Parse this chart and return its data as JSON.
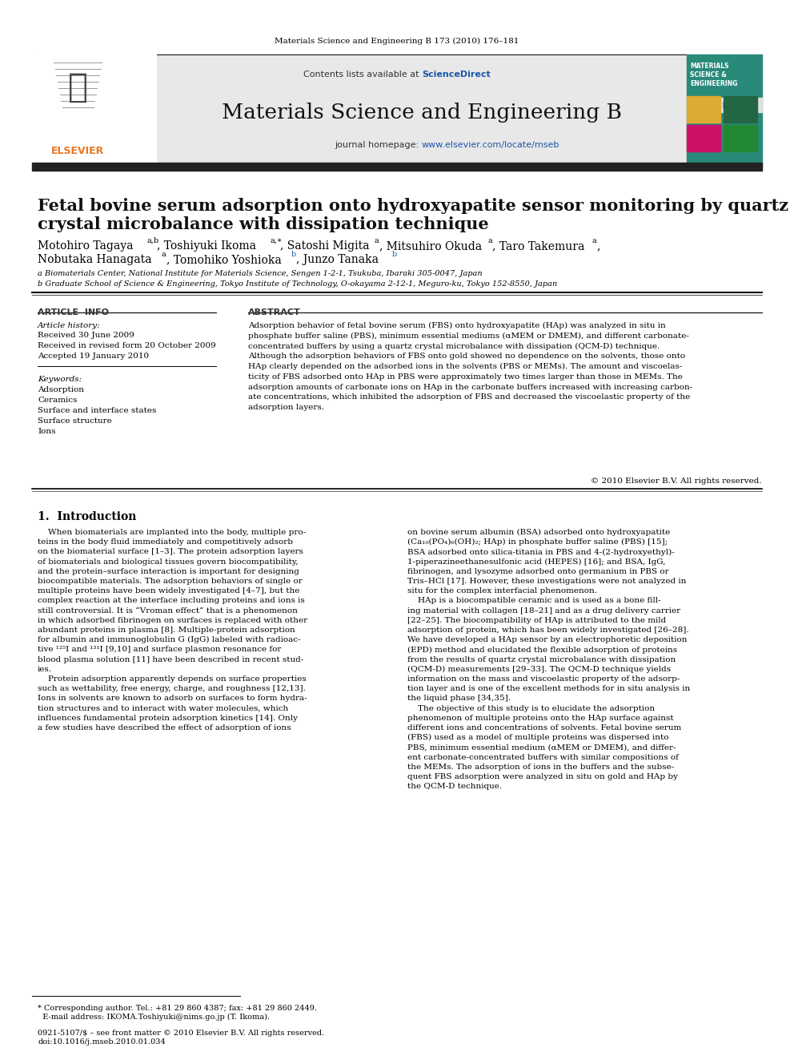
{
  "page_title": "Materials Science and Engineering B 173 (2010) 176–181",
  "journal_name": "Materials Science and Engineering B",
  "journal_url": "www.elsevier.com/locate/mseb",
  "sciencedirect_label": "Contents lists available at ",
  "sciencedirect_link": "ScienceDirect",
  "journal_homepage_label": "journal homepage: ",
  "article_title_line1": "Fetal bovine serum adsorption onto hydroxyapatite sensor monitoring by quartz",
  "article_title_line2": "crystal microbalance with dissipation technique",
  "affil_a": "a Biomaterials Center, National Institute for Materials Science, Sengen 1-2-1, Tsukuba, Ibaraki 305-0047, Japan",
  "affil_b": "b Graduate School of Science & Engineering, Tokyo Institute of Technology, O-okayama 2-12-1, Meguro-ku, Tokyo 152-8550, Japan",
  "article_info_title": "ARTICLE  INFO",
  "article_history_head": "Article history:",
  "article_history_lines": [
    "Received 30 June 2009",
    "Received in revised form 20 October 2009",
    "Accepted 19 January 2010"
  ],
  "keywords_head": "Keywords:",
  "keywords_lines": [
    "Adsorption",
    "Ceramics",
    "Surface and interface states",
    "Surface structure",
    "Ions"
  ],
  "abstract_title": "ABSTRACT",
  "abstract_text": "Adsorption behavior of fetal bovine serum (FBS) onto hydroxyapatite (HAp) was analyzed in situ in\nphosphate buffer saline (PBS), minimum essential mediums (αMEM or DMEM), and different carbonate-\nconcentrated buffers by using a quartz crystal microbalance with dissipation (QCM-D) technique.\nAlthough the adsorption behaviors of FBS onto gold showed no dependence on the solvents, those onto\nHAp clearly depended on the adsorbed ions in the solvents (PBS or MEMs). The amount and viscoelas-\nticity of FBS adsorbed onto HAp in PBS were approximately two times larger than those in MEMs. The\nadsorption amounts of carbonate ions on HAp in the carbonate buffers increased with increasing carbon-\nate concentrations, which inhibited the adsorption of FBS and decreased the viscoelastic property of the\nadsorption layers.",
  "copyright": "© 2010 Elsevier B.V. All rights reserved.",
  "section1_title": "1.  Introduction",
  "intro_col1_lines": [
    "    When biomaterials are implanted into the body, multiple pro-",
    "teins in the body fluid immediately and competitively adsorb",
    "on the biomaterial surface [1–3]. The protein adsorption layers",
    "of biomaterials and biological tissues govern biocompatibility,",
    "and the protein–surface interaction is important for designing",
    "biocompatible materials. The adsorption behaviors of single or",
    "multiple proteins have been widely investigated [4–7], but the",
    "complex reaction at the interface including proteins and ions is",
    "still controversial. It is “Vroman effect” that is a phenomenon",
    "in which adsorbed fibrinogen on surfaces is replaced with other",
    "abundant proteins in plasma [8]. Multiple-protein adsorption",
    "for albumin and immunoglobulin G (IgG) labeled with radioac-",
    "tive ¹²⁵I and ¹³¹I [9,10] and surface plasmon resonance for",
    "blood plasma solution [11] have been described in recent stud-",
    "ies.",
    "    Protein adsorption apparently depends on surface properties",
    "such as wettability, free energy, charge, and roughness [12,13].",
    "Ions in solvents are known to adsorb on surfaces to form hydra-",
    "tion structures and to interact with water molecules, which",
    "influences fundamental protein adsorption kinetics [14]. Only",
    "a few studies have described the effect of adsorption of ions"
  ],
  "intro_col2_lines": [
    "on bovine serum albumin (BSA) adsorbed onto hydroxyapatite",
    "(Ca₁₀(PO₄)₆(OH)₂; HAp) in phosphate buffer saline (PBS) [15];",
    "BSA adsorbed onto silica-titania in PBS and 4-(2-hydroxyethyl)-",
    "1-piperazineethanesulfonic acid (HEPES) [16]; and BSA, IgG,",
    "fibrinogen, and lysozyme adsorbed onto germanium in PBS or",
    "Tris–HCl [17]. However, these investigations were not analyzed in",
    "situ for the complex interfacial phenomenon.",
    "    HAp is a biocompatible ceramic and is used as a bone fill-",
    "ing material with collagen [18–21] and as a drug delivery carrier",
    "[22–25]. The biocompatibility of HAp is attributed to the mild",
    "adsorption of protein, which has been widely investigated [26–28].",
    "We have developed a HAp sensor by an electrophoretic deposition",
    "(EPD) method and elucidated the flexible adsorption of proteins",
    "from the results of quartz crystal microbalance with dissipation",
    "(QCM-D) measurements [29–33]. The QCM-D technique yields",
    "information on the mass and viscoelastic property of the adsorp-",
    "tion layer and is one of the excellent methods for in situ analysis in",
    "the liquid phase [34,35].",
    "    The objective of this study is to elucidate the adsorption",
    "phenomenon of multiple proteins onto the HAp surface against",
    "different ions and concentrations of solvents. Fetal bovine serum",
    "(FBS) used as a model of multiple proteins was dispersed into",
    "PBS, minimum essential medium (αMEM or DMEM), and differ-",
    "ent carbonate-concentrated buffers with similar compositions of",
    "the MEMs. The adsorption of ions in the buffers and the subse-",
    "quent FBS adsorption were analyzed in situ on gold and HAp by",
    "the QCM-D technique."
  ],
  "footnote_line1": "* Corresponding author. Tel.: +81 29 860 4387; fax: +81 29 860 2449.",
  "footnote_line2": "  E-mail address: IKOMA.Toshiyuki@nims.go.jp (T. Ikoma).",
  "footer_line1": "0921-5107/$ – see front matter © 2010 Elsevier B.V. All rights reserved.",
  "footer_line2": "doi:10.1016/j.mseb.2010.01.034",
  "bg_header": "#e8e8e8",
  "color_blue": "#1a56aa",
  "color_orange": "#e87722",
  "color_black": "#000000",
  "color_dark_bar": "#222222",
  "cover_teal": "#2a8a7a",
  "cover_text_color": "#ffffff"
}
